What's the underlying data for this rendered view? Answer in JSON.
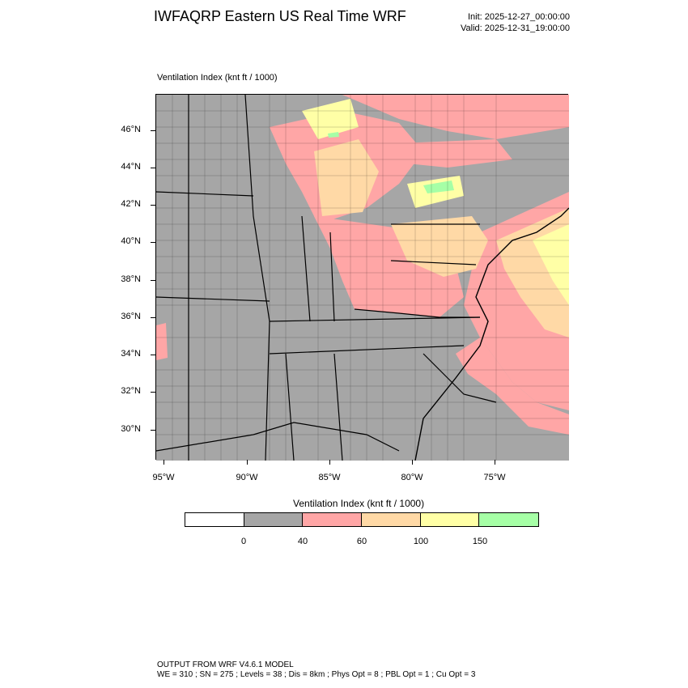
{
  "header": {
    "title": "IWFAQRP Eastern US Real Time WRF",
    "init": "Init: 2025-12-27_00:00:00",
    "valid": "Valid: 2025-12-31_19:00:00"
  },
  "field_label": "Ventilation Index   (knt ft / 1000)",
  "map": {
    "lat_labels": [
      "46°N",
      "44°N",
      "42°N",
      "40°N",
      "38°N",
      "36°N",
      "34°N",
      "32°N",
      "30°N"
    ],
    "lon_labels": [
      "95°W",
      "90°W",
      "85°W",
      "80°W",
      "75°W"
    ],
    "background_color": "#a6a6a6",
    "region": "Eastern United States"
  },
  "colorbar": {
    "title": "Ventilation Index  (knt ft / 1000)",
    "colors": [
      "#ffffff",
      "#a6a6a6",
      "#ffa6a6",
      "#ffd9a6",
      "#ffffa6",
      "#a6ffa6"
    ],
    "labels": [
      "0",
      "40",
      "60",
      "100",
      "150"
    ]
  },
  "footer": {
    "line1": "OUTPUT FROM WRF V4.6.1 MODEL",
    "line2": "WE = 310 ; SN = 275 ; Levels = 38 ; Dis = 8km ; Phys Opt = 8 ; PBL Opt = 1 ; Cu Opt = 3"
  }
}
